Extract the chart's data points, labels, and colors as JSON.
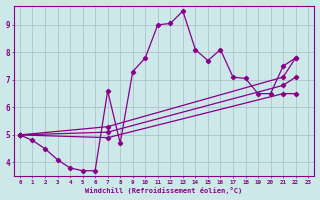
{
  "xlabel": "Windchill (Refroidissement éolien,°C)",
  "bg_color": "#cce8e8",
  "line_color": "#880088",
  "grid_color": "#aabbcc",
  "xlim": [
    -0.5,
    23.5
  ],
  "ylim": [
    3.5,
    9.7
  ],
  "yticks": [
    4,
    5,
    6,
    7,
    8,
    9
  ],
  "xticks": [
    0,
    1,
    2,
    3,
    4,
    5,
    6,
    7,
    8,
    9,
    10,
    11,
    12,
    13,
    14,
    15,
    16,
    17,
    18,
    19,
    20,
    21,
    22,
    23
  ],
  "main_line": [
    5.0,
    4.8,
    4.5,
    4.1,
    3.8,
    3.7,
    3.7,
    6.6,
    4.7,
    7.3,
    7.8,
    9.0,
    9.05,
    9.5,
    8.1,
    7.7,
    8.1,
    7.1,
    7.05,
    6.5,
    6.5,
    7.5,
    7.8,
    null
  ],
  "trend1_x": [
    0,
    7,
    21,
    22
  ],
  "trend1_y": [
    5.0,
    5.3,
    7.1,
    7.8
  ],
  "trend2_x": [
    0,
    7,
    21,
    22
  ],
  "trend2_y": [
    5.0,
    5.1,
    6.8,
    7.1
  ],
  "trend3_x": [
    0,
    7,
    21,
    22
  ],
  "trend3_y": [
    5.0,
    4.9,
    6.5,
    6.5
  ]
}
